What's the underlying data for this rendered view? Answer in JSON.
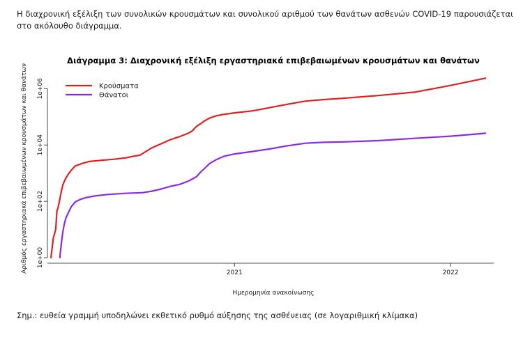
{
  "intro_text": "Η διαχρονική εξέλιξη των συνολικών κρουσμάτων και συνολικού αριθμού των θανάτων ασθενών COVID-19 παρουσιάζεται στο ακόλουθο διάγραμμα.",
  "note_text": "Σημ.: ευθεία γραμμή υποδηλώνει εκθετικό ρυθμό αύξησης της ασθένειας (σε λογαριθμική κλίμακα)",
  "chart_data": {
    "type": "line",
    "title": "Διάγραμμα 3: Διαχρονική εξέλιξη εργαστηριακά επιβεβαιωμένων κρουσμάτων και θανάτων",
    "xlabel": "Ημερομηνία ανακοίνωσης",
    "ylabel": "Αριθμός εργαστηριακά επιβεβαιωμένων κρουσμάτων και θανάτων",
    "y_scale": "log10",
    "ylim": [
      1,
      3000000
    ],
    "xlim": [
      "2020-02-20",
      "2022-03-15"
    ],
    "x_ticks": [
      "2021",
      "2022"
    ],
    "y_ticks": [
      "1e+00",
      "1e+02",
      "1e+04",
      "1e+06"
    ],
    "y_tick_values": [
      1,
      100,
      10000,
      1000000
    ],
    "grid": false,
    "legend_position": "top-left",
    "series": [
      {
        "name": "Κρούσματα",
        "color": "#e02020",
        "points": [
          [
            "2020-02-26",
            1
          ],
          [
            "2020-03-01",
            5
          ],
          [
            "2020-03-03",
            7
          ],
          [
            "2020-03-05",
            10
          ],
          [
            "2020-03-07",
            45
          ],
          [
            "2020-03-09",
            60
          ],
          [
            "2020-03-11",
            95
          ],
          [
            "2020-03-14",
            200
          ],
          [
            "2020-03-17",
            380
          ],
          [
            "2020-03-21",
            600
          ],
          [
            "2020-03-26",
            900
          ],
          [
            "2020-03-31",
            1250
          ],
          [
            "2020-04-07",
            1800
          ],
          [
            "2020-04-20",
            2250
          ],
          [
            "2020-05-01",
            2600
          ],
          [
            "2020-05-20",
            2850
          ],
          [
            "2020-06-10",
            3100
          ],
          [
            "2020-06-30",
            3450
          ],
          [
            "2020-07-15",
            4000
          ],
          [
            "2020-07-25",
            4300
          ],
          [
            "2020-08-05",
            6000
          ],
          [
            "2020-08-15",
            8000
          ],
          [
            "2020-09-01",
            11500
          ],
          [
            "2020-09-15",
            15500
          ],
          [
            "2020-10-01",
            20000
          ],
          [
            "2020-10-15",
            26000
          ],
          [
            "2020-10-22",
            32000
          ],
          [
            "2020-10-29",
            46000
          ],
          [
            "2020-11-05",
            57000
          ],
          [
            "2020-11-12",
            73000
          ],
          [
            "2020-11-20",
            90000
          ],
          [
            "2020-12-01",
            108000
          ],
          [
            "2020-12-15",
            123000
          ],
          [
            "2021-01-01",
            138000
          ],
          [
            "2021-02-01",
            163000
          ],
          [
            "2021-03-01",
            210000
          ],
          [
            "2021-04-01",
            280000
          ],
          [
            "2021-05-01",
            360000
          ],
          [
            "2021-06-01",
            410000
          ],
          [
            "2021-07-01",
            450000
          ],
          [
            "2021-09-01",
            570000
          ],
          [
            "2021-11-01",
            750000
          ],
          [
            "2022-01-01",
            1300000
          ],
          [
            "2022-03-01",
            2350000
          ]
        ]
      },
      {
        "name": "Θάνατοι",
        "color": "#8a2be2",
        "points": [
          [
            "2020-03-12",
            1
          ],
          [
            "2020-03-15",
            4
          ],
          [
            "2020-03-17",
            8
          ],
          [
            "2020-03-19",
            14
          ],
          [
            "2020-03-22",
            25
          ],
          [
            "2020-03-26",
            38
          ],
          [
            "2020-03-31",
            63
          ],
          [
            "2020-04-07",
            95
          ],
          [
            "2020-04-15",
            115
          ],
          [
            "2020-04-25",
            135
          ],
          [
            "2020-05-10",
            155
          ],
          [
            "2020-06-01",
            175
          ],
          [
            "2020-06-30",
            191
          ],
          [
            "2020-07-30",
            202
          ],
          [
            "2020-08-15",
            230
          ],
          [
            "2020-09-01",
            280
          ],
          [
            "2020-09-15",
            340
          ],
          [
            "2020-10-01",
            400
          ],
          [
            "2020-10-15",
            520
          ],
          [
            "2020-10-22",
            620
          ],
          [
            "2020-10-29",
            750
          ],
          [
            "2020-11-05",
            1100
          ],
          [
            "2020-11-12",
            1500
          ],
          [
            "2020-11-20",
            2200
          ],
          [
            "2020-12-01",
            3000
          ],
          [
            "2020-12-15",
            4000
          ],
          [
            "2021-01-01",
            4800
          ],
          [
            "2021-02-01",
            5900
          ],
          [
            "2021-03-01",
            7200
          ],
          [
            "2021-04-01",
            9400
          ],
          [
            "2021-05-01",
            11500
          ],
          [
            "2021-06-01",
            12400
          ],
          [
            "2021-07-01",
            12800
          ],
          [
            "2021-09-01",
            14200
          ],
          [
            "2021-11-01",
            17200
          ],
          [
            "2022-01-01",
            20500
          ],
          [
            "2022-03-01",
            26000
          ]
        ]
      }
    ]
  }
}
